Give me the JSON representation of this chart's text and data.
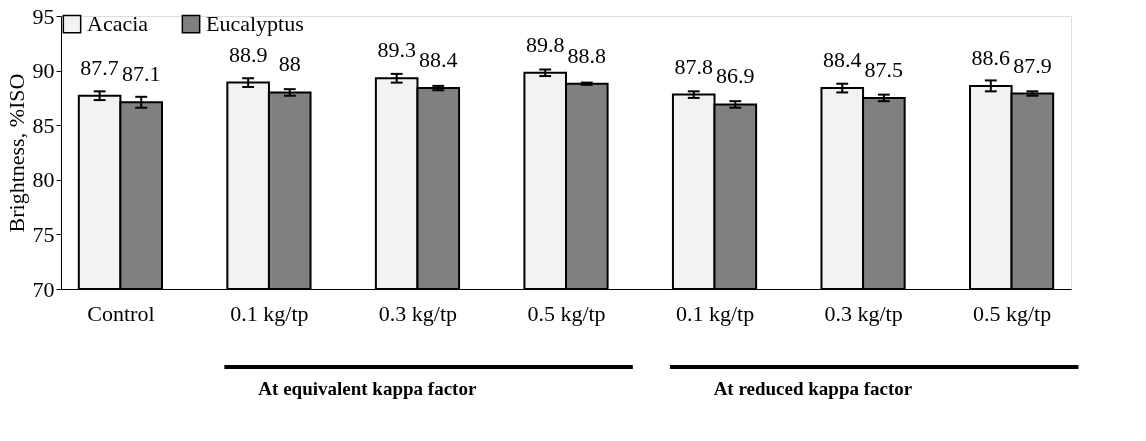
{
  "chart_data": {
    "type": "bar",
    "ylabel": "Brightness, %ISO",
    "categories": [
      "Control",
      "0.1 kg/tp",
      "0.3 kg/tp",
      "0.5 kg/tp",
      "0.1 kg/tp",
      "0.3 kg/tp",
      "0.5 kg/tp"
    ],
    "series": [
      {
        "name": "Acacia",
        "color": "#f2f2f2",
        "values": [
          87.7,
          88.9,
          89.3,
          89.8,
          87.8,
          88.4,
          88.6
        ],
        "errors": [
          0.4,
          0.4,
          0.4,
          0.3,
          0.3,
          0.4,
          0.5
        ]
      },
      {
        "name": "Eucalyptus",
        "color": "#808080",
        "values": [
          87.1,
          88,
          88.4,
          88.8,
          86.9,
          87.5,
          87.9
        ],
        "errors": [
          0.5,
          0.3,
          0.2,
          0.1,
          0.3,
          0.3,
          0.2
        ]
      }
    ],
    "ylim": [
      70,
      95
    ],
    "yticks": [
      70,
      75,
      80,
      85,
      90,
      95
    ],
    "grid": false,
    "legend": "top",
    "data_labels": true,
    "annotations": [
      "At equivalent kappa factor",
      "At reduced kappa factor"
    ]
  }
}
